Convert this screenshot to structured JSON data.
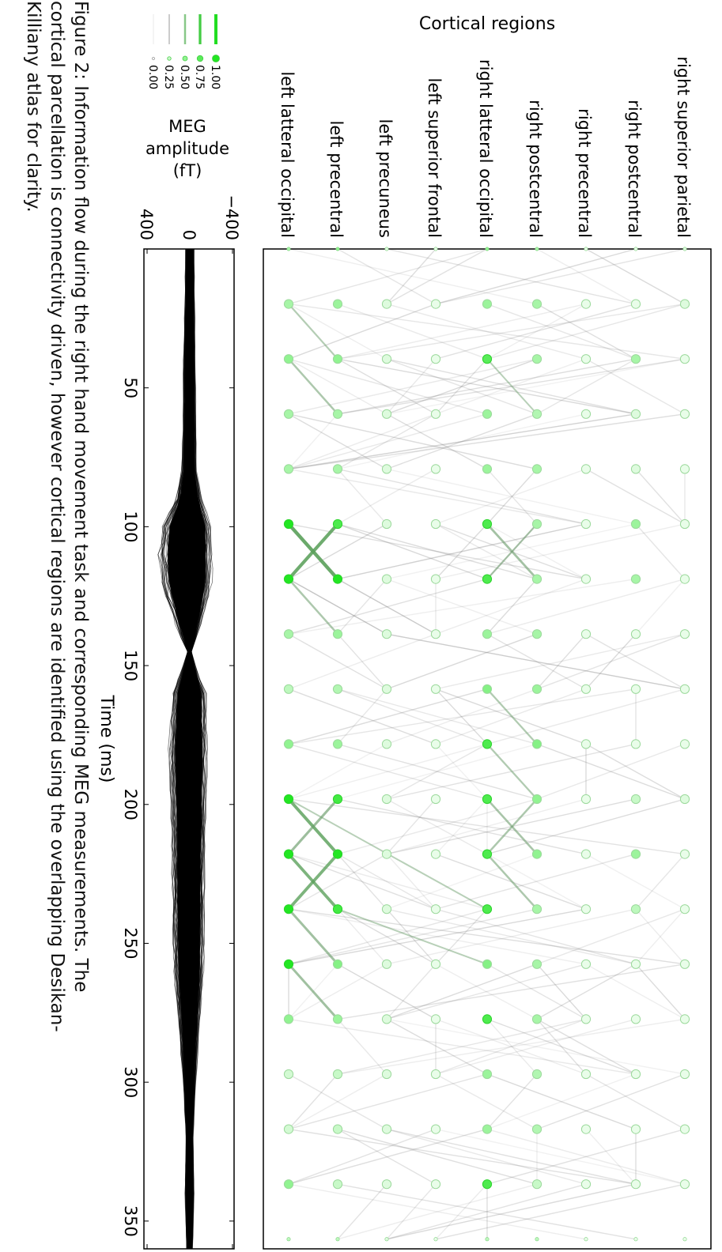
{
  "figure": {
    "caption_lines": [
      "Figure 2: Information flow during the right hand movement task and corresponding MEG measurements. The",
      "cortical parcellation is connectivity driven, however cortical regions are identified using the overlapping Desikan-",
      "Killiany atlas for clarity."
    ]
  },
  "chart_data": [
    {
      "type": "network",
      "title": "Cortical regions",
      "regions": [
        "left latteral occipital",
        "left precentral",
        "left precuneus",
        "left superior frontal",
        "right latteral occipital",
        "right postcentral",
        "right precentral",
        "right postcentral",
        "right superior parietal"
      ],
      "times": [
        0,
        20,
        40,
        60,
        80,
        100,
        120,
        140,
        160,
        180,
        200,
        220,
        240,
        260,
        280,
        300,
        320,
        340,
        360
      ],
      "node_activity": [
        [
          0.4,
          0.5,
          0.15,
          0.1,
          0.5,
          0.4,
          0.1,
          0.1,
          0.15
        ],
        [
          0.4,
          0.45,
          0.15,
          0.1,
          0.45,
          0.4,
          0.1,
          0.1,
          0.15
        ],
        [
          0.5,
          0.5,
          0.15,
          0.1,
          0.75,
          0.4,
          0.1,
          0.4,
          0.1
        ],
        [
          0.4,
          0.4,
          0.15,
          0.1,
          0.45,
          0.35,
          0.1,
          0.15,
          0.1
        ],
        [
          0.4,
          0.4,
          0.15,
          0.1,
          0.45,
          0.4,
          0.1,
          0.15,
          0.1
        ],
        [
          1.0,
          0.8,
          0.15,
          0.1,
          0.8,
          0.4,
          0.1,
          0.45,
          0.1
        ],
        [
          1.0,
          1.0,
          0.15,
          0.1,
          0.8,
          0.4,
          0.1,
          0.4,
          0.1
        ],
        [
          0.4,
          0.45,
          0.15,
          0.1,
          0.45,
          0.4,
          0.1,
          0.1,
          0.1
        ],
        [
          0.3,
          0.35,
          0.15,
          0.1,
          0.55,
          0.45,
          0.1,
          0.1,
          0.1
        ],
        [
          0.5,
          0.45,
          0.15,
          0.1,
          0.8,
          0.55,
          0.1,
          0.1,
          0.1
        ],
        [
          1.0,
          0.85,
          0.15,
          0.1,
          0.8,
          0.5,
          0.1,
          0.25,
          0.15
        ],
        [
          1.0,
          1.0,
          0.15,
          0.1,
          0.8,
          0.5,
          0.1,
          0.45,
          0.1
        ],
        [
          1.0,
          0.85,
          0.15,
          0.1,
          0.8,
          0.4,
          0.1,
          0.3,
          0.1
        ],
        [
          1.0,
          0.55,
          0.15,
          0.1,
          0.55,
          0.4,
          0.1,
          0.1,
          0.1
        ],
        [
          0.5,
          0.45,
          0.15,
          0.1,
          0.8,
          0.4,
          0.1,
          0.1,
          0.1
        ],
        [
          0.2,
          0.25,
          0.15,
          0.1,
          0.45,
          0.35,
          0.1,
          0.1,
          0.1
        ],
        [
          0.2,
          0.25,
          0.15,
          0.1,
          0.45,
          0.35,
          0.1,
          0.1,
          0.1
        ],
        [
          0.5,
          0.25,
          0.15,
          0.1,
          0.8,
          0.25,
          0.1,
          0.1,
          0.1
        ],
        [
          0.3,
          0.3,
          0.15,
          0.1,
          0.3,
          0.3,
          0.1,
          0.1,
          0.1
        ]
      ],
      "strong_links": [
        {
          "from": [
            0,
            5
          ],
          "to": [
            1,
            6
          ],
          "weight": 1.0
        },
        {
          "from": [
            1,
            5
          ],
          "to": [
            0,
            6
          ],
          "weight": 0.95
        },
        {
          "from": [
            0,
            10
          ],
          "to": [
            1,
            11
          ],
          "weight": 0.85
        },
        {
          "from": [
            1,
            10
          ],
          "to": [
            0,
            11
          ],
          "weight": 0.6
        },
        {
          "from": [
            0,
            11
          ],
          "to": [
            1,
            12
          ],
          "weight": 0.8
        },
        {
          "from": [
            1,
            11
          ],
          "to": [
            0,
            12
          ],
          "weight": 0.8
        },
        {
          "from": [
            0,
            12
          ],
          "to": [
            1,
            13
          ],
          "weight": 0.55
        },
        {
          "from": [
            0,
            13
          ],
          "to": [
            1,
            14
          ],
          "weight": 0.55
        },
        {
          "from": [
            0,
            2
          ],
          "to": [
            1,
            3
          ],
          "weight": 0.4
        },
        {
          "from": [
            4,
            5
          ],
          "to": [
            5,
            6
          ],
          "weight": 0.5
        },
        {
          "from": [
            5,
            5
          ],
          "to": [
            4,
            6
          ],
          "weight": 0.35
        },
        {
          "from": [
            4,
            10
          ],
          "to": [
            5,
            11
          ],
          "weight": 0.45
        },
        {
          "from": [
            5,
            10
          ],
          "to": [
            4,
            11
          ],
          "weight": 0.4
        },
        {
          "from": [
            4,
            11
          ],
          "to": [
            5,
            12
          ],
          "weight": 0.4
        },
        {
          "from": [
            4,
            8
          ],
          "to": [
            5,
            9
          ],
          "weight": 0.35
        },
        {
          "from": [
            4,
            9
          ],
          "to": [
            5,
            10
          ],
          "weight": 0.35
        },
        {
          "from": [
            0,
            6
          ],
          "to": [
            1,
            7
          ],
          "weight": 0.4
        },
        {
          "from": [
            0,
            10
          ],
          "to": [
            4,
            12
          ],
          "weight": 0.25
        },
        {
          "from": [
            1,
            12
          ],
          "to": [
            4,
            13
          ],
          "weight": 0.25
        },
        {
          "from": [
            4,
            2
          ],
          "to": [
            5,
            3
          ],
          "weight": 0.25
        },
        {
          "from": [
            0,
            1
          ],
          "to": [
            1,
            2
          ],
          "weight": 0.3
        }
      ],
      "legend": {
        "title": "MEG amplitude (fT)",
        "levels": [
          "1.00",
          "0.75",
          "0.50",
          "0.25",
          "0.00"
        ],
        "placement": "top-left"
      }
    },
    {
      "type": "line",
      "description": "butterfly plot of MEG sensor traces",
      "xlabel": "Time (ms)",
      "xticks": [
        50,
        100,
        150,
        200,
        250,
        300,
        350
      ],
      "xlim": [
        0,
        360
      ],
      "yticks": [
        -400,
        0,
        400
      ],
      "ylim": [
        -400,
        400
      ],
      "envelope": {
        "t": [
          0,
          20,
          40,
          60,
          80,
          90,
          100,
          110,
          120,
          130,
          140,
          145,
          150,
          160,
          180,
          200,
          220,
          240,
          260,
          280,
          300,
          320,
          340,
          360
        ],
        "upper": [
          40,
          45,
          60,
          60,
          75,
          130,
          260,
          290,
          270,
          180,
          80,
          20,
          60,
          160,
          190,
          175,
          165,
          160,
          145,
          100,
          60,
          35,
          45,
          30
        ],
        "lower": [
          -40,
          -45,
          -50,
          -55,
          -60,
          -110,
          -200,
          -210,
          -200,
          -140,
          -60,
          -15,
          -50,
          -150,
          -160,
          -150,
          -140,
          -135,
          -125,
          -90,
          -55,
          -30,
          -40,
          -25
        ]
      }
    }
  ]
}
